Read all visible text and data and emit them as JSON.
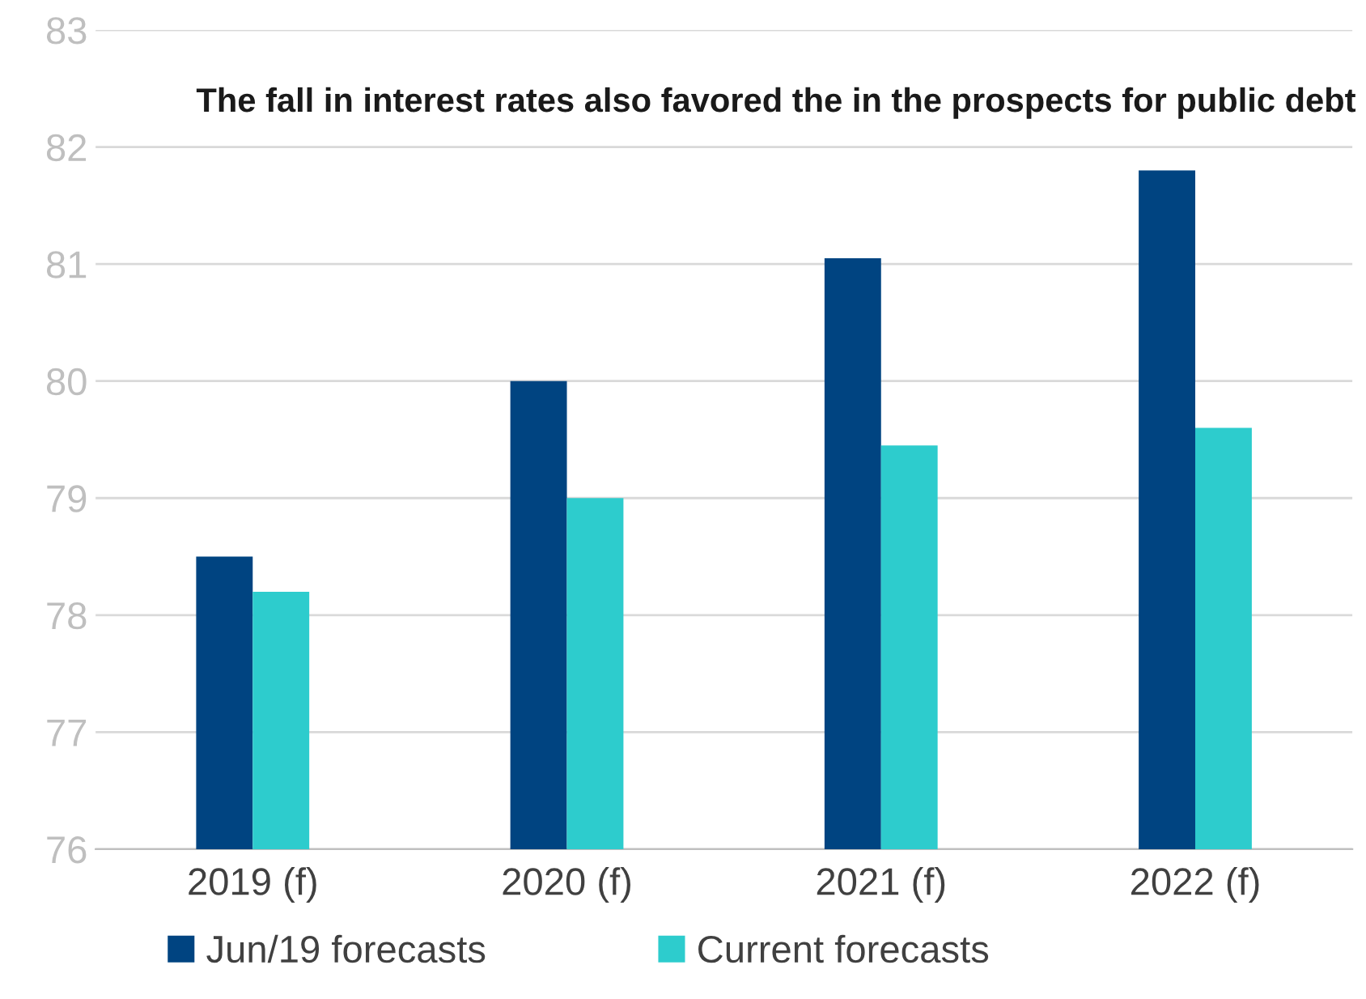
{
  "chart_data": {
    "type": "bar",
    "categories": [
      "2019 (f)",
      "2020 (f)",
      "2021 (f)",
      "2022 (f)"
    ],
    "series": [
      {
        "name": "Jun/19 forecasts",
        "color": "#004481",
        "values": [
          78.5,
          80.0,
          81.05,
          81.8
        ]
      },
      {
        "name": "Current forecasts",
        "color": "#2dcccd",
        "values": [
          78.2,
          79.0,
          79.45,
          79.6
        ]
      }
    ],
    "ylim": [
      76,
      83
    ],
    "yticks": [
      76,
      77,
      78,
      79,
      80,
      81,
      82,
      83
    ],
    "grid": "y",
    "legend": "bottom",
    "annotations": [
      "The fall in interest rates also favored the in the prospects for public debt"
    ]
  }
}
